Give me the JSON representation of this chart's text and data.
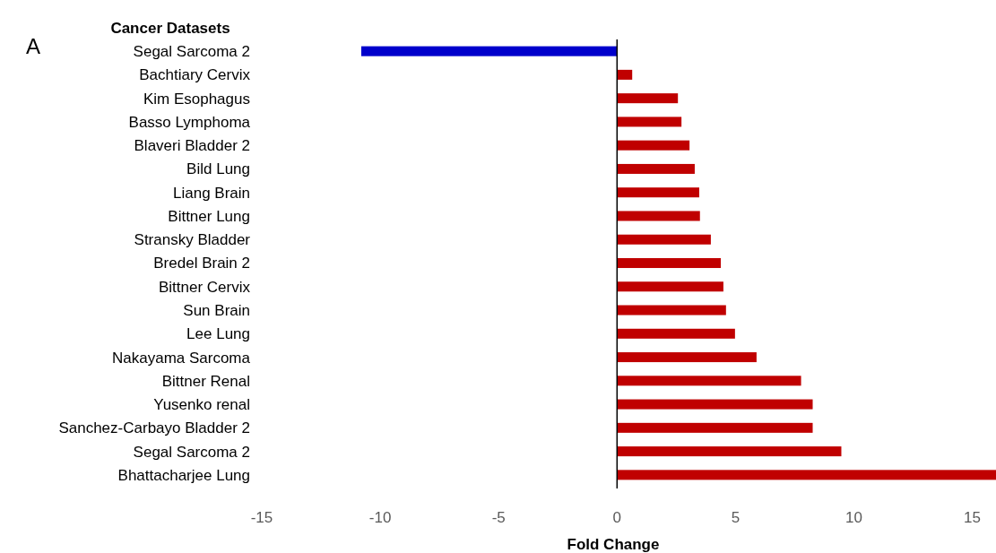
{
  "chart_data": {
    "type": "bar",
    "orientation": "horizontal",
    "ylabel": "Cancer Datasets",
    "xlabel": "Fold Change",
    "annotations": [
      "A"
    ],
    "categories": [
      "Segal Sarcoma 2",
      "Bachtiary Cervix",
      "Kim Esophagus",
      "Basso Lymphoma",
      "Blaveri Bladder 2",
      "Bild Lung",
      "Liang Brain",
      "Bittner Lung",
      "Stransky Bladder",
      "Bredel Brain 2",
      "Bittner Cervix",
      "Sun Brain",
      "Lee Lung",
      "Nakayama Sarcoma",
      "Bittner Renal",
      "Yusenko renal",
      "Sanchez-Carbayo Bladder 2",
      "Segal Sarcoma 2",
      "Bhattacharjee Lung"
    ],
    "values": [
      -10.8,
      0.64,
      2.57,
      2.72,
      3.06,
      3.28,
      3.47,
      3.5,
      3.96,
      4.38,
      4.49,
      4.6,
      4.98,
      5.89,
      7.77,
      8.26,
      8.26,
      9.47,
      16
    ],
    "colors": [
      "#0000cc",
      "#c00000",
      "#c00000",
      "#c00000",
      "#c00000",
      "#c00000",
      "#c00000",
      "#c00000",
      "#c00000",
      "#c00000",
      "#c00000",
      "#c00000",
      "#c00000",
      "#c00000",
      "#c00000",
      "#c00000",
      "#c00000",
      "#c00000",
      "#c00000"
    ],
    "xlim": [
      -15,
      16
    ],
    "xticks": [
      -15,
      -10,
      -5,
      0,
      5,
      10,
      15
    ]
  }
}
